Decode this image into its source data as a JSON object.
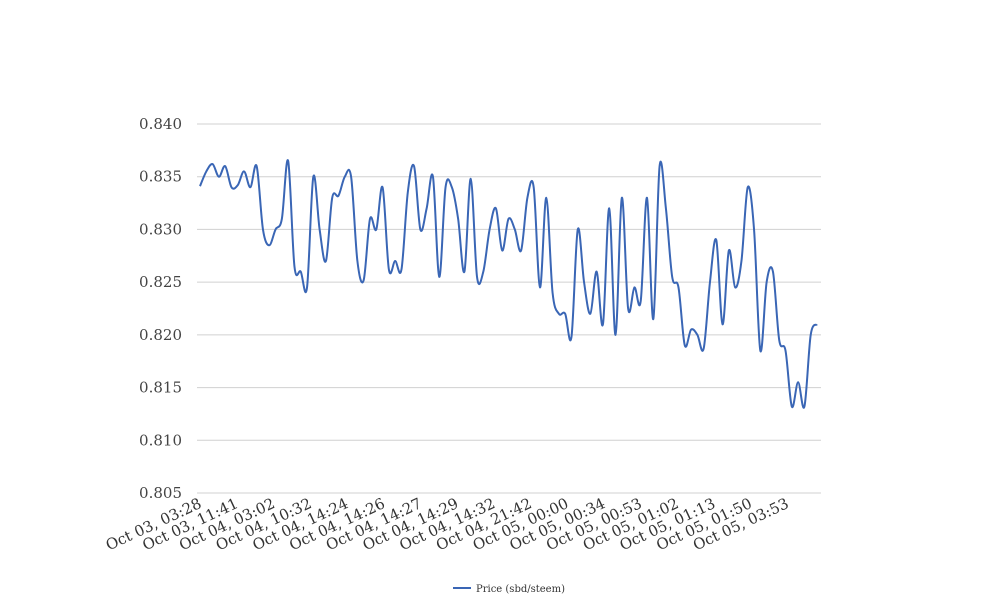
{
  "chart_data": {
    "type": "line",
    "title": "",
    "xlabel": "",
    "ylabel": "",
    "ylim": [
      0.805,
      0.84
    ],
    "y_ticks": [
      0.84,
      0.835,
      0.83,
      0.825,
      0.82,
      0.815,
      0.81,
      0.805
    ],
    "y_tick_labels": [
      "0.840",
      "0.835",
      "0.830",
      "0.825",
      "0.820",
      "0.815",
      "0.810",
      "0.805"
    ],
    "grid": true,
    "legend_position": "bottom-center",
    "x_tick_labels": [
      "Oct 03, 03:28",
      "Oct 03, 11:41",
      "Oct 04, 03:02",
      "Oct 04, 10:32",
      "Oct 04, 14:24",
      "Oct 04, 14:26",
      "Oct 04, 14:27",
      "Oct 04, 14:29",
      "Oct 04, 14:32",
      "Oct 04, 21:42",
      "Oct 05, 00:00",
      "Oct 05, 00:34",
      "Oct 05, 00:53",
      "Oct 05, 01:02",
      "Oct 05, 01:13",
      "Oct 05, 01:50",
      "Oct 05, 03:53"
    ],
    "series": [
      {
        "name": "Price (sbd/steem)",
        "color": "#3a66b5",
        "values": [
          0.8341,
          0.8355,
          0.8362,
          0.835,
          0.836,
          0.834,
          0.8342,
          0.8355,
          0.834,
          0.836,
          0.83,
          0.8285,
          0.83,
          0.831,
          0.8365,
          0.8265,
          0.826,
          0.8245,
          0.835,
          0.83,
          0.827,
          0.833,
          0.8332,
          0.835,
          0.835,
          0.827,
          0.8252,
          0.831,
          0.83,
          0.834,
          0.8262,
          0.827,
          0.8262,
          0.8335,
          0.836,
          0.83,
          0.832,
          0.835,
          0.8255,
          0.834,
          0.834,
          0.831,
          0.826,
          0.8348,
          0.8255,
          0.826,
          0.83,
          0.832,
          0.828,
          0.831,
          0.83,
          0.828,
          0.833,
          0.834,
          0.8245,
          0.833,
          0.824,
          0.822,
          0.822,
          0.8198,
          0.83,
          0.825,
          0.822,
          0.826,
          0.821,
          0.832,
          0.82,
          0.833,
          0.8225,
          0.8245,
          0.8232,
          0.833,
          0.8215,
          0.836,
          0.832,
          0.8255,
          0.8245,
          0.819,
          0.8205,
          0.82,
          0.8187,
          0.825,
          0.829,
          0.821,
          0.828,
          0.8245,
          0.827,
          0.834,
          0.83,
          0.8185,
          0.825,
          0.826,
          0.8195,
          0.8185,
          0.8132,
          0.8155,
          0.8132,
          0.82,
          0.821
        ]
      }
    ]
  }
}
